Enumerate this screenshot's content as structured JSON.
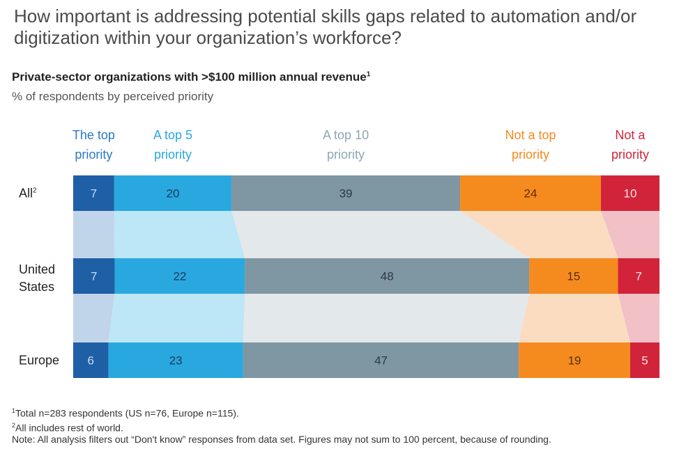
{
  "title": "How important is addressing potential skills gaps related to automation and/or digitization within your organization’s workforce?",
  "subtitle": "Private-sector organizations with >$100 million annual revenue",
  "subtitle_note_mark": "1",
  "unit_label": "% of respondents by perceived priority",
  "colors": {
    "top": "#1f5fa6",
    "top5": "#29a8e0",
    "top10": "#7f96a3",
    "not_top": "#f58a1f",
    "not": "#d1243a",
    "top_band": "#c1d5ea",
    "top5_band": "#bde6f6",
    "top10_band": "#e3e8eb",
    "not_top_band": "#fbdcc0",
    "not_band": "#f2c0c7"
  },
  "chart_data": {
    "type": "bar",
    "orientation": "horizontal",
    "stacked": true,
    "unit": "% of respondents",
    "categories": [
      "All",
      "United States",
      "Europe"
    ],
    "category_note_marks": [
      "2",
      "",
      ""
    ],
    "series": [
      {
        "name": "The top priority",
        "legend_lines": [
          "The top",
          "priority"
        ],
        "color": "#1f5fa6",
        "text_color": "#c9dcf0",
        "values": [
          7,
          7,
          6
        ]
      },
      {
        "name": "A top 5 priority",
        "legend_lines": [
          "A top 5",
          "priority"
        ],
        "color": "#29a8e0",
        "text_color": "#1b3a57",
        "values": [
          20,
          22,
          23
        ]
      },
      {
        "name": "A top 10 priority",
        "legend_lines": [
          "A top 10",
          "priority"
        ],
        "color": "#7f96a3",
        "text_color": "#2b3a42",
        "values": [
          39,
          48,
          47
        ]
      },
      {
        "name": "Not a top priority",
        "legend_lines": [
          "Not a top",
          "priority"
        ],
        "color": "#f58a1f",
        "text_color": "#5a2e00",
        "values": [
          24,
          15,
          19
        ]
      },
      {
        "name": "Not a priority",
        "legend_lines": [
          "Not a",
          "priority"
        ],
        "color": "#d1243a",
        "text_color": "#fbe3e6",
        "values": [
          10,
          7,
          5
        ]
      }
    ]
  },
  "legend_colors": [
    "#2a78c4",
    "#29a8e0",
    "#8ea7b5",
    "#f58a1f",
    "#d1243a"
  ],
  "footnotes": {
    "note1_mark": "1",
    "note1": "Total n=283 respondents (US n=76, Europe n=115).",
    "note2_mark": "2",
    "note2": "All includes rest of world.",
    "note3": "Note: All analysis filters out “Don't know” responses from data set. Figures may not sum to 100 percent, because of rounding."
  }
}
